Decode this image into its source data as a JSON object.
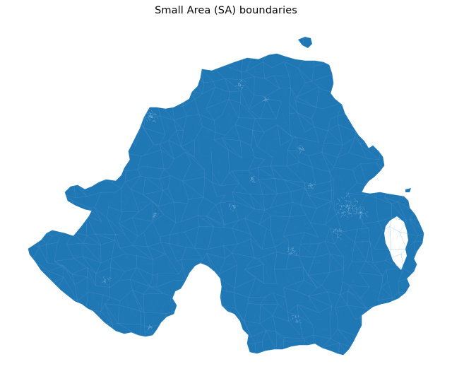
{
  "figure": {
    "title": "Small Area (SA) boundaries"
  },
  "map": {
    "region": "Northern Ireland",
    "layer": "Small Area (SA) boundaries",
    "fill_color": "#1f77b4",
    "edge_color": "#5b9bd0",
    "background_color": "#ffffff",
    "axes_visible": false
  }
}
